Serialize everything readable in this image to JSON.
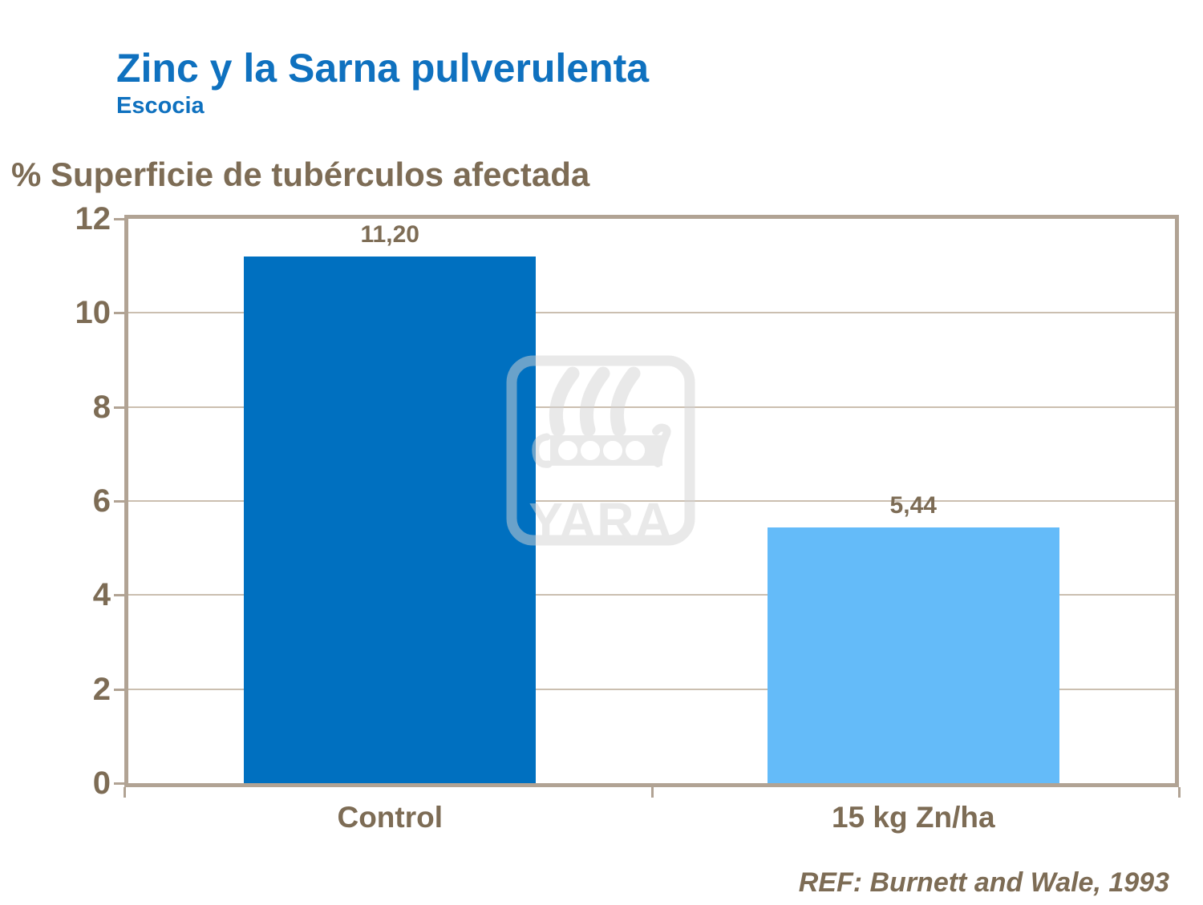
{
  "header": {
    "title": "Zinc y la Sarna pulverulenta",
    "subtitle": "Escocia"
  },
  "chart_data": {
    "type": "bar",
    "title": "Zinc y la Sarna pulverulenta",
    "subtitle": "Escocia",
    "axis_title": "% Superficie de tubérculos afectada",
    "categories": [
      "Control",
      "15 kg Zn/ha"
    ],
    "values": [
      11.2,
      5.44
    ],
    "value_labels": [
      "11,20",
      "5,44"
    ],
    "bar_colors": [
      "#0070c0",
      "#64bbf9"
    ],
    "ylim": [
      0,
      12
    ],
    "yticks": [
      0,
      2,
      4,
      6,
      8,
      10,
      12
    ],
    "grid": true,
    "legend": false
  },
  "watermark": {
    "name": "yara-logo",
    "text": "YARA"
  },
  "reference": "REF: Burnett and Wale, 1993",
  "colors": {
    "title_blue": "#0f71bf",
    "text_brown": "#7d6c55",
    "frame_tan": "#b1a394",
    "gridline_tan": "#cbbfb0",
    "bar_dark_blue": "#0070c0",
    "bar_light_blue": "#64bbf9",
    "watermark_gray": "#d4d4d4"
  }
}
